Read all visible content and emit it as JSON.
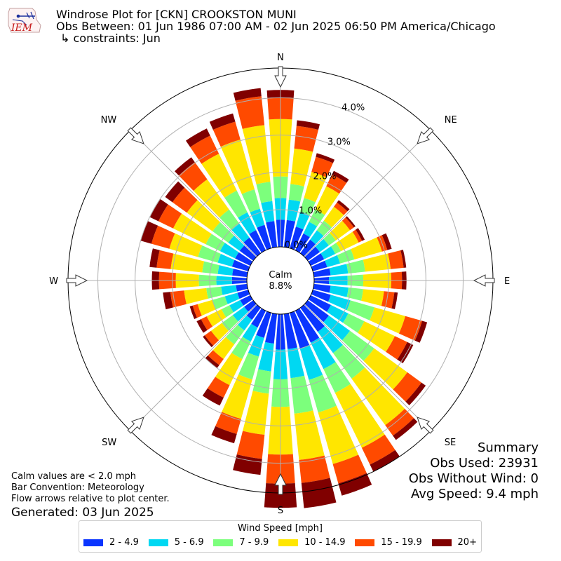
{
  "header": {
    "line1": "Windrose Plot for [CKN] CROOKSTON MUNI",
    "line2": "Obs Between: 01 Jun 1986 07:00 AM - 02 Jun 2025 06:50 PM America/Chicago",
    "line3": "↳ constraints: Jun",
    "logo_text": "IEM"
  },
  "calm": {
    "label": "Calm",
    "value": "8.8%"
  },
  "summary": {
    "title": "Summary",
    "obs_used": "Obs Used: 23931",
    "obs_without_wind": "Obs Without Wind: 0",
    "avg_speed": "Avg Speed: 9.4 mph"
  },
  "notes": {
    "calm_note": "Calm values are < 2.0 mph",
    "bar_convention": "Bar Convention: Meteorology",
    "flow_note": "Flow arrows relative to plot center.",
    "generated": "Generated: 03 Jun 2025"
  },
  "legend": {
    "title": "Wind Speed [mph]",
    "items": [
      {
        "label": "2 - 4.9",
        "color": "#0a35ff"
      },
      {
        "label": "5 - 6.9",
        "color": "#00d8f2"
      },
      {
        "label": "7 - 9.9",
        "color": "#7cff7c"
      },
      {
        "label": "10 - 14.9",
        "color": "#ffe600"
      },
      {
        "label": "15 - 19.9",
        "color": "#ff4a00"
      },
      {
        "label": "20+",
        "color": "#800000"
      }
    ]
  },
  "chart_data": {
    "type": "windrose",
    "title": "Windrose Plot for [CKN] CROOKSTON MUNI",
    "radial_ticks": [
      "0.0%",
      "1.0%",
      "2.0%",
      "3.0%",
      "4.0%"
    ],
    "radial_range": [
      0,
      4.8
    ],
    "compass_labels": [
      "N",
      "NE",
      "E",
      "SE",
      "S",
      "SW",
      "W",
      "NW"
    ],
    "bin_labels": [
      "2 - 4.9",
      "5 - 6.9",
      "7 - 9.9",
      "10 - 14.9",
      "15 - 19.9",
      "20+"
    ],
    "bin_colors": [
      "#0a35ff",
      "#00d8f2",
      "#7cff7c",
      "#ffe600",
      "#ff4a00",
      "#800000"
    ],
    "directions_deg": [
      0,
      10,
      20,
      30,
      40,
      50,
      60,
      70,
      80,
      90,
      100,
      110,
      120,
      130,
      140,
      150,
      160,
      170,
      180,
      190,
      200,
      210,
      220,
      230,
      240,
      250,
      260,
      270,
      280,
      290,
      300,
      310,
      320,
      330,
      340,
      350
    ],
    "cumulative_percent": [
      [
        0.73,
        1.31,
        1.89,
        3.43,
        4.01,
        4.21
      ],
      [
        0.73,
        1.28,
        1.7,
        2.66,
        3.27,
        3.42
      ],
      [
        0.6,
        1.02,
        1.4,
        2.13,
        2.55,
        2.65
      ],
      [
        0.5,
        0.85,
        1.22,
        1.91,
        2.26,
        2.37
      ],
      [
        0.45,
        0.76,
        1.08,
        1.54,
        1.68,
        1.76
      ],
      [
        0.4,
        0.7,
        0.93,
        1.4,
        1.53,
        1.58
      ],
      [
        0.4,
        0.73,
        0.9,
        1.43,
        1.53,
        1.61
      ],
      [
        0.4,
        0.76,
        1.16,
        1.93,
        2.08,
        2.2
      ],
      [
        0.45,
        0.92,
        1.38,
        2.07,
        2.42,
        2.49
      ],
      [
        0.4,
        0.9,
        1.32,
        2.07,
        2.36,
        2.48
      ],
      [
        0.45,
        0.93,
        1.33,
        1.89,
        2.17,
        2.26
      ],
      [
        0.5,
        1.05,
        1.72,
        2.58,
        3.05,
        3.19
      ],
      [
        0.6,
        1.12,
        1.6,
        2.51,
        2.88,
        3.06
      ],
      [
        0.7,
        1.4,
        2.2,
        3.3,
        3.77,
        3.91
      ],
      [
        0.8,
        1.5,
        2.35,
        3.89,
        4.24,
        4.38
      ],
      [
        0.95,
        1.74,
        2.45,
        4.09,
        4.59,
        4.8
      ],
      [
        1.0,
        1.87,
        2.78,
        4.22,
        4.76,
        5.1
      ],
      [
        0.95,
        1.73,
        2.69,
        3.94,
        4.56,
        5.24
      ],
      [
        0.95,
        1.75,
        2.49,
        3.77,
        4.55,
        5.2
      ],
      [
        0.8,
        1.55,
        2.15,
        3.26,
        3.91,
        4.34
      ],
      [
        0.7,
        1.22,
        1.86,
        2.96,
        3.38,
        3.64
      ],
      [
        0.5,
        0.92,
        1.44,
        2.22,
        2.59,
        2.83
      ],
      [
        0.4,
        0.75,
        1.21,
        1.7,
        1.9,
        2.0
      ],
      [
        0.3,
        0.68,
        1.04,
        1.4,
        1.61,
        1.67
      ],
      [
        0.3,
        0.62,
        0.86,
        1.3,
        1.47,
        1.6
      ],
      [
        0.3,
        0.65,
        1.0,
        1.41,
        1.55,
        1.63
      ],
      [
        0.3,
        0.7,
        1.1,
        1.7,
        2.07,
        2.27
      ],
      [
        0.4,
        0.82,
        1.29,
        1.91,
        2.36,
        2.55
      ],
      [
        0.4,
        0.79,
        1.21,
        2.06,
        2.44,
        2.63
      ],
      [
        0.45,
        0.85,
        1.4,
        2.2,
        2.7,
        3.0
      ],
      [
        0.45,
        0.9,
        1.33,
        2.3,
        2.74,
        2.99
      ],
      [
        0.45,
        0.83,
        1.35,
        2.2,
        2.68,
        2.92
      ],
      [
        0.52,
        0.98,
        1.45,
        2.45,
        3.02,
        3.18
      ],
      [
        0.6,
        1.13,
        1.78,
        2.88,
        3.42,
        3.63
      ],
      [
        0.65,
        1.1,
        1.64,
        3.03,
        3.53,
        3.76
      ],
      [
        0.7,
        1.24,
        1.76,
        3.29,
        4.07,
        4.29
      ]
    ]
  }
}
